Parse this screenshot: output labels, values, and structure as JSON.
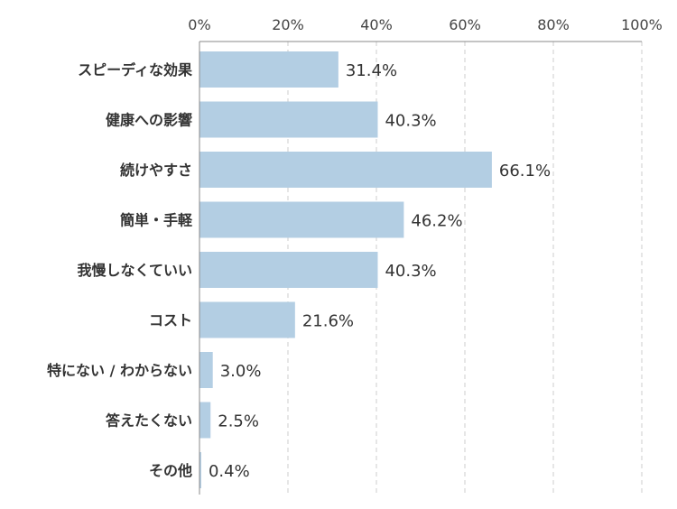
{
  "chart_data": {
    "type": "bar",
    "orientation": "horizontal",
    "categories": [
      "スピーディな効果",
      "健康への影響",
      "続けやすさ",
      "簡単・手軽",
      "我慢しなくていい",
      "コスト",
      "特にない / わからない",
      "答えたくない",
      "その他"
    ],
    "values": [
      31.4,
      40.3,
      66.1,
      46.2,
      40.3,
      21.6,
      3.0,
      2.5,
      0.4
    ],
    "value_labels": [
      "31.4%",
      "40.3%",
      "66.1%",
      "46.2%",
      "40.3%",
      "21.6%",
      "3.0%",
      "2.5%",
      "0.4%"
    ],
    "xlim": [
      0,
      100
    ],
    "x_ticks": [
      "0%",
      "20%",
      "40%",
      "60%",
      "80%",
      "100%"
    ],
    "x_axis_position": "top",
    "grid": true,
    "legend": false,
    "bar_color": "#b3cee3",
    "grid_color": "#cccccc",
    "axis_color": "#888888"
  }
}
